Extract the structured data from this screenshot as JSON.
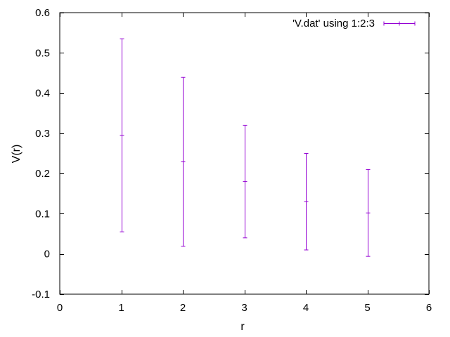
{
  "chart_data": {
    "type": "scatter",
    "style": "errorbars",
    "xlabel": "r",
    "ylabel": "V(r)",
    "xlim": [
      0,
      6
    ],
    "ylim": [
      -0.1,
      0.6
    ],
    "xticks": [
      0,
      1,
      2,
      3,
      4,
      5,
      6
    ],
    "yticks": [
      -0.1,
      0,
      0.1,
      0.2,
      0.3,
      0.4,
      0.5,
      0.6
    ],
    "grid": false,
    "legend_position": "top-right",
    "series": [
      {
        "name": "'V.dat' using 1:2:3",
        "color": "#9400d3",
        "x": [
          1,
          2,
          3,
          4,
          5
        ],
        "y": [
          0.295,
          0.229,
          0.18,
          0.13,
          0.102
        ],
        "yerr": [
          0.24,
          0.21,
          0.14,
          0.12,
          0.108
        ]
      }
    ]
  }
}
